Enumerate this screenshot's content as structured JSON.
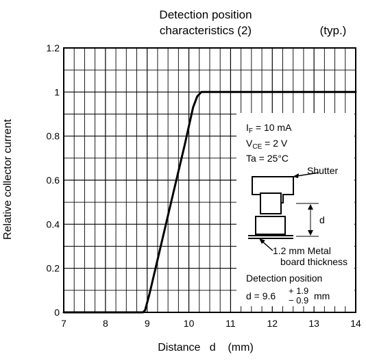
{
  "chart_data": {
    "type": "line",
    "title_line1": "Detection position",
    "title_line2": "characteristics (2)",
    "title_note": "(typ.)",
    "xlabel": "Distance   d    (mm)",
    "ylabel": "Relative collector current",
    "xlim": [
      7,
      14
    ],
    "ylim": [
      0,
      1.2
    ],
    "x_ticks": [
      "7",
      "8",
      "9",
      "10",
      "11",
      "12",
      "13",
      "14"
    ],
    "y_ticks": [
      "0",
      "0.2",
      "0.4",
      "0.6",
      "0.8",
      "1",
      "1.2"
    ],
    "grid": true,
    "series": [
      {
        "x": [
          7.0,
          8.9,
          8.95,
          9.05,
          9.3,
          9.6,
          9.9,
          10.1,
          10.2,
          10.3,
          10.4,
          11.0,
          12.0,
          13.0,
          14.0
        ],
        "y": [
          0.0,
          0.0,
          0.01,
          0.08,
          0.28,
          0.52,
          0.76,
          0.93,
          0.98,
          1.0,
          1.0,
          1.0,
          1.0,
          1.0,
          1.0
        ]
      }
    ],
    "conditions": {
      "if_sym": "I",
      "if_sub": "F",
      "if_val": " = 10 mA",
      "vce_sym": "V",
      "vce_sub": "CE",
      "vce_val": " = 2 V",
      "ta": "Ta = 25°C"
    },
    "diagram": {
      "shutter": "Shutter",
      "d": "d",
      "metal_line1": "1.2 mm Metal",
      "metal_line2": "board thickness"
    },
    "detection": {
      "title": "Detection position",
      "base": "d = 9.6",
      "plus": "+ 1.9",
      "minus": "− 0.9",
      "unit": "mm"
    }
  }
}
